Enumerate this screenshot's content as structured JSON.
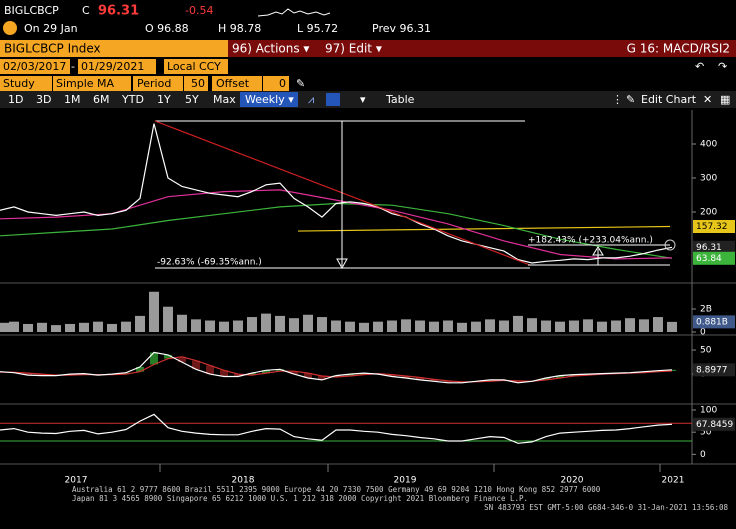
{
  "header": {
    "ticker": "BIGLCBCP",
    "close_label": "C",
    "last": "96.31",
    "change": "-0.54",
    "date": "On 29 Jan",
    "open": "O 96.88",
    "high": "H 98.78",
    "low": "L 95.72",
    "prev": "Prev 96.31"
  },
  "toolbar": {
    "security": "BIGLCBCP Index",
    "actions": "96) Actions ▾",
    "edit": "97) Edit ▾",
    "function": "G 16: MACD/RSI2"
  },
  "range": {
    "start": "02/03/2017",
    "end": "01/29/2021",
    "currency": "Local CCY"
  },
  "study": {
    "label": "Study",
    "type": "Simple MA",
    "period_label": "Period",
    "period": "50",
    "offset_label": "Offset",
    "offset": "0"
  },
  "periods": [
    "1D",
    "3D",
    "1M",
    "6M",
    "YTD",
    "1Y",
    "5Y",
    "Max"
  ],
  "frequency": "Weekly ▾",
  "table": "Table",
  "edit_chart": "Edit Chart",
  "chart_data": [
    {
      "type": "line",
      "ylim": [
        0,
        500
      ],
      "yticks": [
        200,
        300,
        400
      ],
      "series": [
        {
          "color": "#ffffff",
          "values": [
            205,
            215,
            200,
            195,
            190,
            195,
            200,
            190,
            195,
            205,
            240,
            460,
            300,
            275,
            265,
            255,
            250,
            245,
            260,
            280,
            285,
            240,
            215,
            185,
            225,
            230,
            225,
            215,
            195,
            185,
            165,
            150,
            130,
            115,
            105,
            95,
            85,
            60,
            50,
            55,
            58,
            62,
            60,
            65,
            65,
            70,
            78,
            88,
            96.31
          ]
        },
        {
          "color": "#e0309a",
          "values": [
            180,
            185,
            195,
            245,
            260,
            265,
            235,
            205,
            165,
            115,
            75,
            62,
            65
          ]
        },
        {
          "color": "#3cb43c",
          "values": [
            130,
            140,
            150,
            175,
            195,
            215,
            225,
            220,
            195,
            160,
            120,
            90,
            63.84
          ]
        }
      ],
      "trend": {
        "color": "#e6c619",
        "values": [
          144,
          157.32
        ]
      },
      "annotations": [
        "-92.63% (-69.35%ann.)",
        "+182.43% (+233.04%ann.)"
      ]
    },
    {
      "type": "bar",
      "color": "#9a9a9a",
      "ylim": [
        0,
        4
      ],
      "yticks": [
        0,
        {
          "value": 2,
          "label": "2B"
        }
      ],
      "values": [
        0.8,
        0.9,
        0.7,
        0.8,
        0.6,
        0.7,
        0.8,
        0.9,
        0.7,
        0.9,
        1.4,
        3.5,
        2.2,
        1.5,
        1.1,
        1.0,
        0.9,
        1.0,
        1.3,
        1.6,
        1.4,
        1.2,
        1.5,
        1.3,
        1.0,
        0.9,
        0.8,
        0.9,
        1.0,
        1.1,
        1.0,
        0.9,
        1.0,
        0.8,
        0.9,
        1.1,
        1.0,
        1.4,
        1.2,
        1.0,
        0.9,
        1.0,
        1.1,
        0.9,
        1.0,
        1.2,
        1.1,
        1.3,
        0.881
      ],
      "value_labels": [
        null,
        null,
        null,
        null,
        null,
        null,
        null,
        null,
        null,
        null,
        null,
        null,
        null,
        null,
        null,
        null,
        null,
        null,
        null,
        null,
        null,
        null,
        null,
        null,
        null,
        null,
        null,
        null,
        null,
        null,
        null,
        null,
        null,
        null,
        null,
        null,
        null,
        null,
        null,
        null,
        null,
        null,
        null,
        null,
        null,
        null,
        null,
        null,
        "0.881B"
      ]
    },
    {
      "type": "line",
      "ylim": [
        -60,
        75
      ],
      "yticks": [
        0,
        50
      ],
      "series": [
        {
          "color": "#ffffff",
          "values": [
            5,
            3,
            -2,
            -3,
            -3,
            0,
            1,
            -2,
            0,
            3,
            15,
            45,
            40,
            25,
            10,
            0,
            -5,
            -5,
            2,
            8,
            10,
            0,
            -8,
            -12,
            -3,
            0,
            2,
            0,
            -5,
            -8,
            -12,
            -15,
            -18,
            -18,
            -15,
            -12,
            -12,
            -18,
            -15,
            -8,
            -3,
            -1,
            0,
            1,
            2,
            3,
            5,
            7,
            8.8977
          ]
        },
        {
          "color": "#d03030",
          "values": [
            4,
            4,
            2,
            0,
            -2,
            -2,
            -1,
            -1,
            -1,
            0,
            5,
            20,
            32,
            36,
            28,
            18,
            8,
            0,
            -2,
            2,
            6,
            6,
            2,
            -4,
            -6,
            -4,
            -1,
            1,
            -1,
            -4,
            -7,
            -11,
            -14,
            -16,
            -16,
            -15,
            -13,
            -14,
            -15,
            -12,
            -8,
            -4,
            -2,
            0,
            1,
            2,
            3,
            5,
            6.5
          ]
        }
      ]
    },
    {
      "type": "line",
      "ylim": [
        -15,
        109
      ],
      "yticks": [
        0,
        50,
        100
      ],
      "levels": [
        70,
        30
      ],
      "level_colors": [
        "#d03030",
        "#3cb43c"
      ],
      "series": [
        {
          "color": "#ffffff",
          "values": [
            55,
            58,
            50,
            48,
            47,
            52,
            54,
            46,
            50,
            56,
            75,
            90,
            60,
            52,
            48,
            45,
            44,
            44,
            52,
            58,
            57,
            40,
            35,
            32,
            55,
            55,
            52,
            50,
            45,
            42,
            38,
            35,
            30,
            30,
            35,
            40,
            38,
            25,
            28,
            40,
            48,
            50,
            52,
            54,
            55,
            58,
            62,
            66,
            67.8459
          ]
        }
      ]
    }
  ],
  "x_axis": [
    "2017",
    "2018",
    "2019",
    "2020",
    "2021"
  ],
  "footer": [
    "Australia 61 2 9777 8600 Brazil 5511 2395 9000 Europe 44 20 7330 7500 Germany 49 69 9204 1210 Hong Kong 852 2977 6000",
    "Japan 81 3 4565 8900      Singapore 65 6212 1000      U.S. 1 212 318 2000      Copyright 2021 Bloomberg Finance L.P.",
    "SN 483793 EST  GMT-5:00 G684-346-0 31-Jan-2021 13:56:08"
  ]
}
